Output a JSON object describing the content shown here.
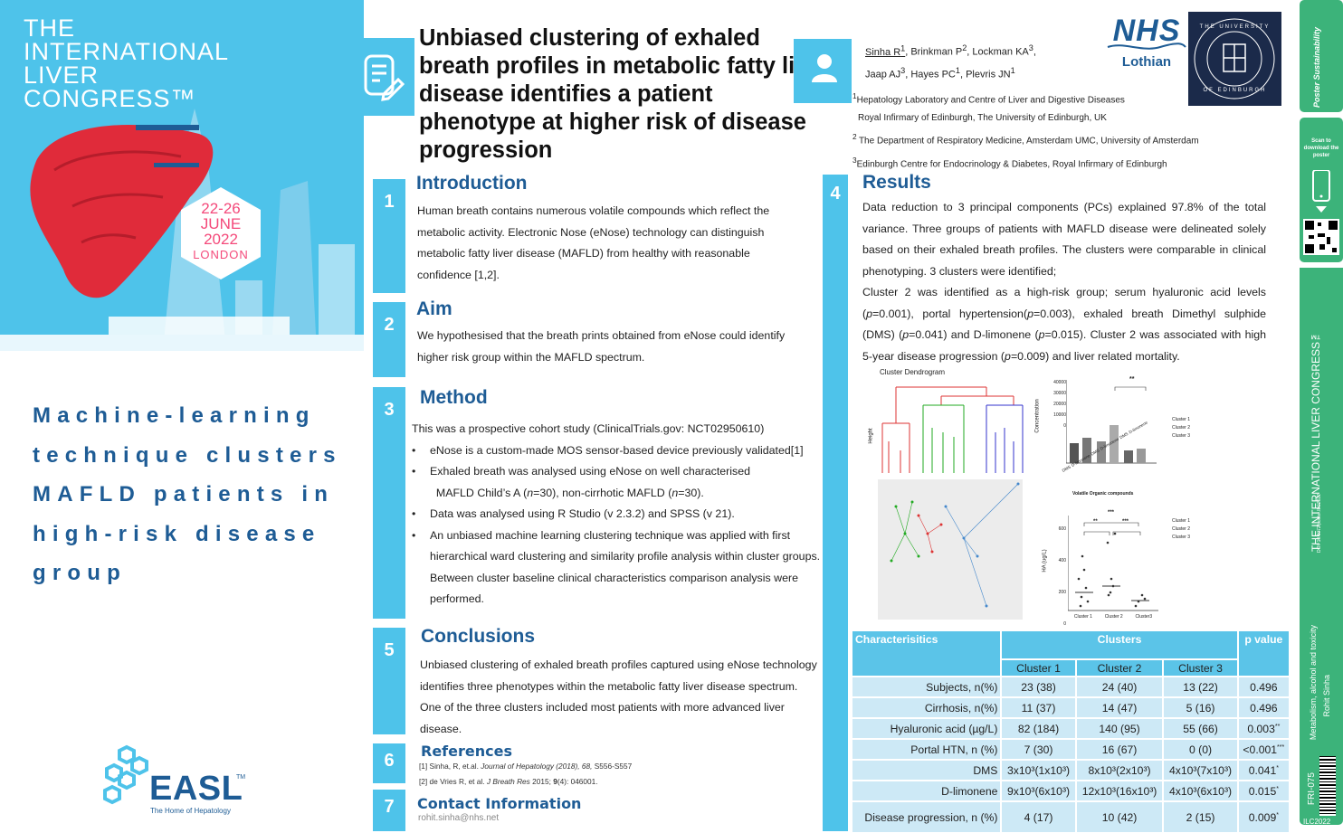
{
  "congress": {
    "lines": [
      "THE",
      "INTERNATIONAL",
      "LIVER",
      "CONGRESS™"
    ]
  },
  "event_dates": {
    "days": "22-26",
    "month": "JUNE",
    "year": "2022",
    "city": "LONDON"
  },
  "tagline": [
    "Machine-learning",
    "technique clusters",
    "MAFLD patients in",
    "high-risk disease",
    "group"
  ],
  "easl": {
    "name": "EASL",
    "tm": "TM",
    "subtitle": "The Home of Hepatology"
  },
  "title": "Unbiased clustering of exhaled breath profiles in metabolic fatty liver disease identifies a patient phenotype at higher risk of disease progression",
  "authors": {
    "line1": [
      "Sinha R",
      "1",
      ", Brinkman P",
      "2",
      ", Lockman KA",
      "3",
      ","
    ],
    "line2": [
      "Jaap AJ",
      "3",
      ", Hayes PC",
      "1",
      ", Plevris JN",
      "1"
    ]
  },
  "affiliations": [
    "Hepatology Laboratory and Centre of Liver and Digestive Diseases",
    "Royal Infirmary of Edinburgh, The University of Edinburgh, UK",
    "The Department of Respiratory Medicine, Amsterdam UMC, University of Amsterdam",
    "Edinburgh Centre for Endocrinology & Diabetes, Royal Infirmary of Edinburgh"
  ],
  "nhs": {
    "name": "NHS",
    "region": "Lothian"
  },
  "university": {
    "ring_top": "THE UNIVERSITY",
    "ring_bottom": "OF EDINBURGH"
  },
  "sections": {
    "introduction": {
      "num": "1",
      "title": "Introduction",
      "text": "Human breath contains numerous volatile compounds which reflect the metabolic activity. Electronic Nose (eNose) technology can distinguish metabolic fatty liver disease (MAFLD) from healthy with reasonable confidence [1,2]."
    },
    "aim": {
      "num": "2",
      "title": "Aim",
      "text": "We hypothesised that the breath prints obtained from eNose could identify higher risk group within the MAFLD spectrum."
    },
    "method": {
      "num": "3",
      "title": "Method",
      "intro": "This was a prospective cohort study (ClinicalTrials.gov: NCT02950610)",
      "b1": "eNose is a custom-made MOS sensor-based device previously validated[1]",
      "b2a": "Exhaled breath was analysed using eNose on well characterised",
      "b2b": "MAFLD Child’s A (",
      "b2c": "non-cirrhotic MAFLD (",
      "b3": "Data was analysed using R Studio (v 2.3.2) and SPSS (v 21).",
      "b4": "An unbiased machine learning clustering technique was applied with first hierarchical ward clustering and similarity profile analysis within cluster groups. Between cluster baseline clinical characteristics comparison analysis were performed."
    },
    "results": {
      "num": "4",
      "title": "Results",
      "p1": "Data reduction to 3 principal components (PCs) explained 97.8% of the total variance. Three groups of patients with MAFLD disease were delineated solely based on their exhaled breath profiles. The clusters were comparable in clinical phenotyping. 3 clusters were identified;",
      "p2": "Cluster 2 was identified as a high-risk group; serum hyaluronic acid levels"
    },
    "conclusions": {
      "num": "5",
      "title": "Conclusions",
      "text": "Unbiased clustering of exhaled breath profiles captured using eNose technology identifies three phenotypes within the metabolic fatty liver disease spectrum. One of the three clusters included most patients with more advanced liver disease."
    },
    "references": {
      "num": "6",
      "title": "References",
      "r1a": "[1] Sinha, R, et.al. ",
      "r1b": "Journal of Hepatology (2018), 68,",
      "r1c": " S556-S557",
      "r2a": "[2] de Vries R, et al. ",
      "r2b": "J Breath Res",
      "r2c": " 2015; ",
      "r2d": "9",
      "r2e": "(4): 046001."
    },
    "contact": {
      "num": "7",
      "title": "Contact Information",
      "email": "rohit.sinha@nhs.net"
    }
  },
  "figures": {
    "dendrogram_title": "Cluster Dendrogram",
    "dendrogram_ylabel": "Height",
    "bar_xlabel": "Volatile Organic compounds",
    "bar_ylabel": "Concentration",
    "bar_yticks": [
      "40000",
      "30000",
      "20000",
      "10000",
      "0"
    ],
    "bar_categories": [
      "DMS",
      "D-limonene",
      "DMS",
      "D-limonene",
      "DMS",
      "D-limonene"
    ],
    "bar_sig": "**",
    "legend": [
      "Cluster 1",
      "Cluster 2",
      "Cluster 3"
    ],
    "ha_ylabel": "HA (ug/L)",
    "ha_yticks": [
      "600",
      "400",
      "200",
      "0"
    ],
    "ha_categories": [
      "Cluster 1",
      "Cluster 2",
      "Cluster3"
    ],
    "ha_sig": [
      "***",
      "**",
      "***"
    ]
  },
  "table": {
    "h_char": "Characterisitics",
    "h_clusters": "Clusters",
    "h_p": "p value",
    "sub": [
      "Cluster 1",
      "Cluster 2",
      "Cluster 3"
    ],
    "rows": [
      {
        "label": "Subjects, n(%)",
        "c1": "23 (38)",
        "c2": "24 (40)",
        "c3": "13 (22)",
        "p": "0.496",
        "star": ""
      },
      {
        "label": "Cirrhosis, n(%)",
        "c1": "11 (37)",
        "c2": "14 (47)",
        "c3": "5 (16)",
        "p": "0.496",
        "star": ""
      },
      {
        "label": "Hyaluronic acid (µg/L)",
        "c1": "82 (184)",
        "c2": "140 (95)",
        "c3": "55 (66)",
        "p": "0.003",
        "star": "**"
      },
      {
        "label": "Portal HTN, n (%)",
        "c1": "7 (30)",
        "c2": "16 (67)",
        "c3": "0 (0)",
        "p": "<0.001",
        "star": "***"
      },
      {
        "label": "DMS",
        "c1": "3x10³(1x10³)",
        "c2": "8x10³(2x10³)",
        "c3": "4x10³(7x10³)",
        "p": "0.041",
        "star": "*"
      },
      {
        "label": "D-limonene",
        "c1": "9x10³(6x10³)",
        "c2": "12x10³(16x10³)",
        "c3": "4x10³(6x10³)",
        "p": "0.015",
        "star": "*"
      },
      {
        "label": "Disease progression, n (%)",
        "c1": "4 (17)",
        "c2": "10 (42)",
        "c3": "2 (15)",
        "p": "0.009",
        "star": "*"
      }
    ]
  },
  "sidebar": {
    "brand": "Poster Sustainability",
    "scan": "Scan to download the poster",
    "congress": "THE INTERNATIONAL LIVER CONGRESS™",
    "doi": "DOI: 10.5072/poster.ILC2022",
    "topic": "Metabolism, alcohol and toxicity",
    "author": "Rohit Sinha",
    "code": "FRI-075",
    "ilc": "ILC2022"
  },
  "colors": {
    "accent": "#4ec3ea",
    "navy": "#1e5c95",
    "green": "#3cb37a",
    "pink": "#f4497a",
    "table_head": "#5bc4e8",
    "table_row": "#cde9f6"
  }
}
